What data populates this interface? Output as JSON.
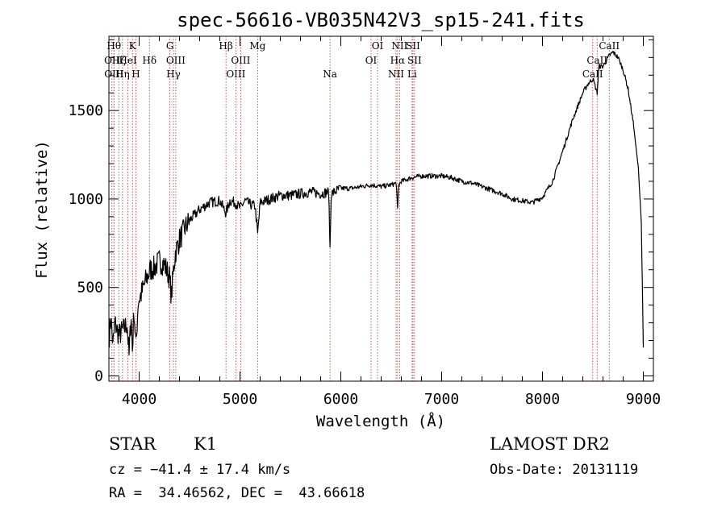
{
  "chart_data": {
    "type": "line",
    "title": "spec-56616-VB035N42V3_sp15-241.fits",
    "xlabel": "Wavelength (Å)",
    "ylabel": "Flux (relative)",
    "xlim": [
      3700,
      9100
    ],
    "ylim": [
      -30,
      1920
    ],
    "xticks": [
      4000,
      5000,
      6000,
      7000,
      8000,
      9000
    ],
    "xtick_labels": [
      "4000",
      "5000",
      "6000",
      "7000",
      "8000",
      "9000"
    ],
    "yticks": [
      0,
      500,
      1000,
      1500
    ],
    "ytick_labels": [
      "0",
      "500",
      "1000",
      "1500"
    ],
    "grid": false,
    "series": [
      {
        "x": [
          3700,
          3720,
          3740,
          3760,
          3780,
          3800,
          3830,
          3860,
          3880,
          3900,
          3920,
          3933,
          3950,
          3968,
          3990,
          4020,
          4060,
          4090,
          4110,
          4150,
          4200,
          4250,
          4300,
          4320,
          4340,
          4360,
          4400,
          4450,
          4500,
          4600,
          4700,
          4800,
          4861,
          4900,
          4950,
          5000,
          5050,
          5100,
          5150,
          5175,
          5200,
          5300,
          5400,
          5500,
          5600,
          5700,
          5800,
          5880,
          5893,
          5905,
          6000,
          6100,
          6200,
          6300,
          6400,
          6500,
          6550,
          6563,
          6575,
          6600,
          6650,
          6700,
          6800,
          6900,
          7000,
          7100,
          7200,
          7300,
          7400,
          7500,
          7600,
          7700,
          7800,
          7900,
          8000,
          8100,
          8200,
          8300,
          8400,
          8450,
          8500,
          8542,
          8560,
          8600,
          8662,
          8700,
          8750,
          8800,
          8850,
          8900,
          8950,
          8980,
          9000
        ],
        "y": [
          200,
          330,
          170,
          300,
          260,
          230,
          250,
          270,
          300,
          110,
          350,
          150,
          370,
          160,
          420,
          460,
          530,
          570,
          600,
          610,
          650,
          630,
          560,
          450,
          600,
          700,
          770,
          830,
          880,
          940,
          980,
          990,
          920,
          990,
          980,
          950,
          990,
          970,
          960,
          800,
          980,
          1000,
          1020,
          1020,
          1030,
          1040,
          1030,
          1040,
          720,
          1030,
          1060,
          1060,
          1070,
          1080,
          1070,
          1080,
          1090,
          940,
          1080,
          1100,
          1110,
          1120,
          1130,
          1130,
          1130,
          1120,
          1100,
          1090,
          1070,
          1050,
          1030,
          1000,
          990,
          980,
          1010,
          1100,
          1270,
          1450,
          1600,
          1650,
          1680,
          1600,
          1750,
          1750,
          1810,
          1830,
          1800,
          1730,
          1620,
          1430,
          1180,
          870,
          160
        ]
      }
    ],
    "lines": [
      {
        "x": 3730,
        "label": "OII",
        "row": 1
      },
      {
        "x": 3750,
        "label": "Hθ",
        "row": 0
      },
      {
        "x": 3750,
        "label": "OIII",
        "row": 2
      },
      {
        "x": 3798,
        "label": "Hζ",
        "row": 1
      },
      {
        "x": 3835,
        "label": "Hη",
        "row": 2
      },
      {
        "x": 3889,
        "label": "HeI",
        "row": 1
      },
      {
        "x": 3934,
        "label": "K",
        "row": 0
      },
      {
        "x": 3968,
        "label": "H",
        "row": 2
      },
      {
        "x": 4102,
        "label": "Hδ",
        "row": 1
      },
      {
        "x": 4305,
        "label": "G",
        "row": 0
      },
      {
        "x": 4340,
        "label": "Hγ",
        "row": 2
      },
      {
        "x": 4363,
        "label": "OIII",
        "row": 1
      },
      {
        "x": 4861,
        "label": "Hβ",
        "row": 0
      },
      {
        "x": 4959,
        "label": "OIII",
        "row": 2
      },
      {
        "x": 5007,
        "label": "OIII",
        "row": 1
      },
      {
        "x": 5175,
        "label": "Mg",
        "row": 0
      },
      {
        "x": 5893,
        "label": "Na",
        "row": 2
      },
      {
        "x": 6300,
        "label": "OI",
        "row": 1
      },
      {
        "x": 6364,
        "label": "OI",
        "row": 0
      },
      {
        "x": 6548,
        "label": "NII",
        "row": 2
      },
      {
        "x": 6563,
        "label": "Hα",
        "row": 1
      },
      {
        "x": 6583,
        "label": "NII",
        "row": 0
      },
      {
        "x": 6707,
        "label": "Li",
        "row": 2
      },
      {
        "x": 6716,
        "label": "SII",
        "row": 0
      },
      {
        "x": 6731,
        "label": "SII",
        "row": 1
      },
      {
        "x": 8498,
        "label": "CaII",
        "row": 2
      },
      {
        "x": 8542,
        "label": "CaII",
        "row": 1
      },
      {
        "x": 8662,
        "label": "CaII",
        "row": 0
      }
    ]
  },
  "info": {
    "class": "STAR",
    "subclass": "K1",
    "survey": "LAMOST DR2",
    "cz": "cz = −41.4 ± 17.4 km/s",
    "obs_date": "Obs-Date: 20131119",
    "coords": "RA =  34.46562, DEC =  43.66618"
  }
}
